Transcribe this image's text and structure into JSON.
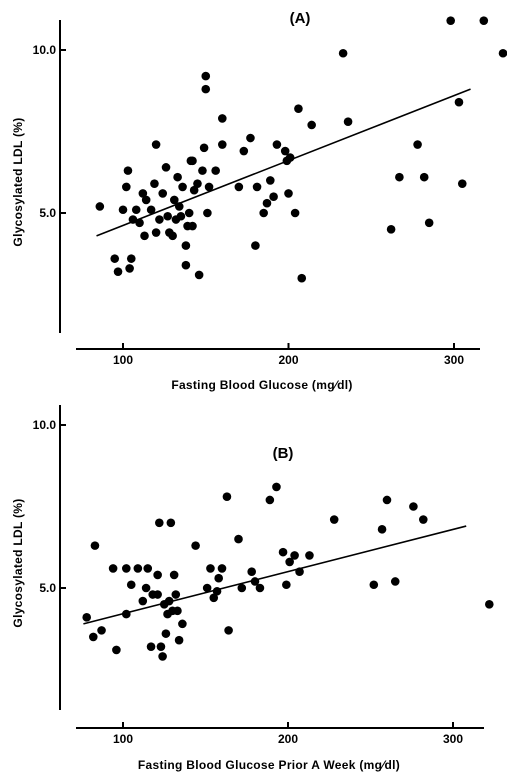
{
  "colors": {
    "points": "#000000",
    "axes": "#000000",
    "background": "#ffffff"
  },
  "chart_data": [
    {
      "type": "scatter",
      "title": "(A)",
      "xlabel": "Fasting  Blood  Glucose (mg⁄dl)",
      "ylabel": "Glycosylated  LDL  (%)",
      "xlim": [
        70,
        330
      ],
      "ylim": [
        1.0,
        11.0
      ],
      "x_ticks": [
        100,
        200,
        300
      ],
      "x_tick_labels": [
        "100",
        "200",
        "300"
      ],
      "y_ticks": [
        5.0,
        10.0
      ],
      "y_tick_labels": [
        "5.0",
        "10.0"
      ],
      "grid": false,
      "legend": "none",
      "points": [
        [
          86,
          5.2
        ],
        [
          95,
          3.6
        ],
        [
          97,
          3.2
        ],
        [
          100,
          5.1
        ],
        [
          102,
          5.8
        ],
        [
          103,
          6.3
        ],
        [
          104,
          3.3
        ],
        [
          105,
          3.6
        ],
        [
          106,
          4.8
        ],
        [
          108,
          5.1
        ],
        [
          110,
          4.7
        ],
        [
          112,
          5.6
        ],
        [
          113,
          4.3
        ],
        [
          114,
          5.4
        ],
        [
          117,
          5.1
        ],
        [
          119,
          5.9
        ],
        [
          120,
          7.1
        ],
        [
          120,
          4.4
        ],
        [
          122,
          4.8
        ],
        [
          124,
          5.6
        ],
        [
          126,
          6.4
        ],
        [
          127,
          4.9
        ],
        [
          128,
          4.4
        ],
        [
          130,
          4.3
        ],
        [
          131,
          5.4
        ],
        [
          132,
          4.8
        ],
        [
          133,
          6.1
        ],
        [
          134,
          5.2
        ],
        [
          135,
          4.9
        ],
        [
          136,
          5.8
        ],
        [
          138,
          4.0
        ],
        [
          138,
          3.4
        ],
        [
          139,
          4.6
        ],
        [
          140,
          5.0
        ],
        [
          141,
          6.6
        ],
        [
          142,
          4.6
        ],
        [
          142,
          6.6
        ],
        [
          143,
          5.7
        ],
        [
          145,
          5.9
        ],
        [
          146,
          3.1
        ],
        [
          148,
          6.3
        ],
        [
          149,
          7.0
        ],
        [
          150,
          9.2
        ],
        [
          150,
          8.8
        ],
        [
          151,
          5.0
        ],
        [
          152,
          5.8
        ],
        [
          156,
          6.3
        ],
        [
          160,
          7.9
        ],
        [
          160,
          7.1
        ],
        [
          170,
          5.8
        ],
        [
          173,
          6.9
        ],
        [
          177,
          7.3
        ],
        [
          180,
          4.0
        ],
        [
          181,
          5.8
        ],
        [
          185,
          5.0
        ],
        [
          187,
          5.3
        ],
        [
          189,
          6.0
        ],
        [
          191,
          5.5
        ],
        [
          193,
          7.1
        ],
        [
          198,
          6.9
        ],
        [
          199,
          6.6
        ],
        [
          200,
          5.6
        ],
        [
          201,
          6.7
        ],
        [
          204,
          5.0
        ],
        [
          206,
          8.2
        ],
        [
          208,
          3.0
        ],
        [
          214,
          7.7
        ],
        [
          233,
          9.9
        ],
        [
          236,
          7.8
        ],
        [
          262,
          4.5
        ],
        [
          267,
          6.1
        ],
        [
          278,
          7.1
        ],
        [
          282,
          6.1
        ],
        [
          285,
          4.7
        ],
        [
          298,
          10.9
        ],
        [
          303,
          8.4
        ],
        [
          305,
          5.9
        ],
        [
          318,
          10.9
        ],
        [
          330,
          9.9
        ]
      ],
      "fit_line": {
        "x": [
          84,
          310
        ],
        "y": [
          4.3,
          8.8
        ]
      }
    },
    {
      "type": "scatter",
      "title": "(B)",
      "xlabel": "Fasting  Blood  Glucose  Prior  A  Week  (mg⁄dl)",
      "ylabel": "Glycosylated  LDL  (%)",
      "xlim": [
        70,
        330
      ],
      "ylim": [
        1.0,
        11.0
      ],
      "x_ticks": [
        100,
        200,
        300
      ],
      "x_tick_labels": [
        "100",
        "200",
        "300"
      ],
      "y_ticks": [
        5.0,
        10.0
      ],
      "y_tick_labels": [
        "5.0",
        "10.0"
      ],
      "grid": false,
      "legend": "none",
      "points": [
        [
          78,
          4.1
        ],
        [
          82,
          3.5
        ],
        [
          83,
          6.3
        ],
        [
          87,
          3.7
        ],
        [
          94,
          5.6
        ],
        [
          96,
          3.1
        ],
        [
          102,
          5.6
        ],
        [
          102,
          4.2
        ],
        [
          105,
          5.1
        ],
        [
          109,
          5.6
        ],
        [
          112,
          4.6
        ],
        [
          114,
          5.0
        ],
        [
          115,
          5.6
        ],
        [
          117,
          3.2
        ],
        [
          118,
          4.8
        ],
        [
          121,
          5.4
        ],
        [
          121,
          4.8
        ],
        [
          122,
          7.0
        ],
        [
          123,
          3.2
        ],
        [
          124,
          2.9
        ],
        [
          125,
          4.5
        ],
        [
          126,
          3.6
        ],
        [
          127,
          4.2
        ],
        [
          128,
          4.6
        ],
        [
          129,
          7.0
        ],
        [
          130,
          4.3
        ],
        [
          131,
          5.4
        ],
        [
          132,
          4.8
        ],
        [
          133,
          4.3
        ],
        [
          134,
          3.4
        ],
        [
          136,
          3.9
        ],
        [
          144,
          6.3
        ],
        [
          151,
          5.0
        ],
        [
          153,
          5.6
        ],
        [
          155,
          4.7
        ],
        [
          157,
          4.9
        ],
        [
          158,
          5.3
        ],
        [
          160,
          5.6
        ],
        [
          163,
          7.8
        ],
        [
          164,
          3.7
        ],
        [
          170,
          6.5
        ],
        [
          172,
          5.0
        ],
        [
          178,
          5.5
        ],
        [
          180,
          5.2
        ],
        [
          183,
          5.0
        ],
        [
          189,
          7.7
        ],
        [
          193,
          8.1
        ],
        [
          197,
          6.1
        ],
        [
          199,
          5.1
        ],
        [
          201,
          5.8
        ],
        [
          204,
          6.0
        ],
        [
          207,
          5.5
        ],
        [
          213,
          6.0
        ],
        [
          228,
          7.1
        ],
        [
          252,
          5.1
        ],
        [
          257,
          6.8
        ],
        [
          260,
          7.7
        ],
        [
          265,
          5.2
        ],
        [
          276,
          7.5
        ],
        [
          282,
          7.1
        ],
        [
          322,
          4.5
        ]
      ],
      "fit_line": {
        "x": [
          76,
          308
        ],
        "y": [
          3.9,
          6.9
        ]
      }
    }
  ]
}
